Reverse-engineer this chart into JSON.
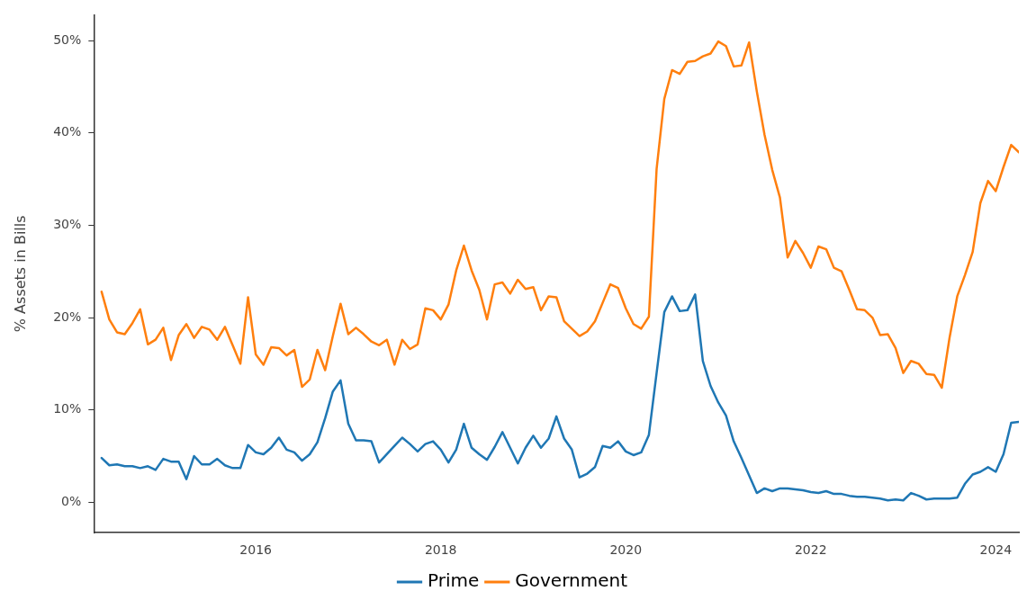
{
  "chart_data": {
    "type": "line",
    "ylabel": "% Assets in Bills",
    "x": [
      "2014-05",
      "2014-06",
      "2014-07",
      "2014-08",
      "2014-09",
      "2014-10",
      "2014-11",
      "2014-12",
      "2015-01",
      "2015-02",
      "2015-03",
      "2015-04",
      "2015-05",
      "2015-06",
      "2015-07",
      "2015-08",
      "2015-09",
      "2015-10",
      "2015-11",
      "2015-12",
      "2016-01",
      "2016-02",
      "2016-03",
      "2016-04",
      "2016-05",
      "2016-06",
      "2016-07",
      "2016-08",
      "2016-09",
      "2016-10",
      "2016-11",
      "2016-12",
      "2017-01",
      "2017-02",
      "2017-03",
      "2017-04",
      "2017-05",
      "2017-06",
      "2017-07",
      "2017-08",
      "2017-09",
      "2017-10",
      "2017-11",
      "2017-12",
      "2018-01",
      "2018-02",
      "2018-03",
      "2018-04",
      "2018-05",
      "2018-06",
      "2018-07",
      "2018-08",
      "2018-09",
      "2018-10",
      "2018-11",
      "2018-12",
      "2019-01",
      "2019-02",
      "2019-03",
      "2019-04",
      "2019-05",
      "2019-06",
      "2019-07",
      "2019-08",
      "2019-09",
      "2019-10",
      "2019-11",
      "2019-12",
      "2020-01",
      "2020-02",
      "2020-03",
      "2020-04",
      "2020-05",
      "2020-06",
      "2020-07",
      "2020-08",
      "2020-09",
      "2020-10",
      "2020-11",
      "2020-12",
      "2021-01",
      "2021-02",
      "2021-03",
      "2021-04",
      "2021-05",
      "2021-06",
      "2021-07",
      "2021-08",
      "2021-09",
      "2021-10",
      "2021-11",
      "2021-12",
      "2022-01",
      "2022-02",
      "2022-03",
      "2022-04",
      "2022-05",
      "2022-06",
      "2022-07",
      "2022-08",
      "2022-09",
      "2022-10",
      "2022-11",
      "2022-12",
      "2023-01",
      "2023-02",
      "2023-03",
      "2023-04",
      "2023-05",
      "2023-06",
      "2023-07",
      "2023-08",
      "2023-09",
      "2023-10",
      "2023-11",
      "2023-12",
      "2024-01",
      "2024-02",
      "2024-03",
      "2024-04"
    ],
    "series": [
      {
        "name": "Prime",
        "color": "#1f77b4",
        "values": [
          4.8,
          4.0,
          4.1,
          3.9,
          3.9,
          3.7,
          3.9,
          3.5,
          4.7,
          4.4,
          4.4,
          2.5,
          5.0,
          4.1,
          4.1,
          4.7,
          4.0,
          3.7,
          3.7,
          6.2,
          5.4,
          5.2,
          5.9,
          7.0,
          5.7,
          5.4,
          4.5,
          5.2,
          6.5,
          9.1,
          12.0,
          13.2,
          8.5,
          6.7,
          6.7,
          6.6,
          4.3,
          5.2,
          6.1,
          7.0,
          6.3,
          5.5,
          6.3,
          6.6,
          5.7,
          4.3,
          5.7,
          8.5,
          5.9,
          5.2,
          4.6,
          6.0,
          7.6,
          5.9,
          4.2,
          5.9,
          7.2,
          5.9,
          6.9,
          9.3,
          6.9,
          5.7,
          2.7,
          3.1,
          3.8,
          6.1,
          5.9,
          6.6,
          5.5,
          5.1,
          5.4,
          7.3,
          14.0,
          20.6,
          22.3,
          20.7,
          20.8,
          22.5,
          15.3,
          12.6,
          10.8,
          9.4,
          6.6,
          4.8,
          2.9,
          1.0,
          1.5,
          1.2,
          1.5,
          1.5,
          1.4,
          1.3,
          1.1,
          1.0,
          1.2,
          0.9,
          0.9,
          0.7,
          0.6,
          0.6,
          0.5,
          0.4,
          0.2,
          0.3,
          0.2,
          1.0,
          0.7,
          0.3,
          0.4,
          0.4,
          0.4,
          0.5,
          2.0,
          3.0,
          3.3,
          3.8,
          3.3,
          5.2,
          8.6,
          8.7
        ]
      },
      {
        "name": "Government",
        "color": "#ff7f0e",
        "values": [
          22.8,
          19.8,
          18.4,
          18.2,
          19.4,
          20.9,
          17.1,
          17.6,
          18.9,
          15.4,
          18.1,
          19.3,
          17.8,
          19.0,
          18.7,
          17.6,
          19.0,
          17.0,
          15.0,
          22.2,
          16.0,
          14.9,
          16.8,
          16.7,
          15.9,
          16.5,
          12.5,
          13.3,
          16.5,
          14.3,
          18.0,
          21.5,
          18.2,
          18.9,
          18.2,
          17.4,
          17.0,
          17.6,
          14.9,
          17.6,
          16.6,
          17.1,
          21.0,
          20.8,
          19.8,
          21.4,
          25.1,
          27.8,
          25.1,
          23.0,
          19.8,
          23.6,
          23.8,
          22.6,
          24.1,
          23.1,
          23.3,
          20.8,
          22.3,
          22.2,
          19.6,
          18.8,
          18.0,
          18.5,
          19.6,
          21.6,
          23.6,
          23.2,
          21.0,
          19.3,
          18.8,
          20.1,
          36.1,
          43.7,
          46.8,
          46.4,
          47.7,
          47.8,
          48.3,
          48.6,
          49.9,
          49.4,
          47.2,
          47.3,
          49.8,
          44.5,
          39.8,
          36.0,
          33.0,
          26.5,
          28.3,
          27.0,
          25.4,
          27.7,
          27.4,
          25.4,
          25.0,
          23.0,
          20.9,
          20.8,
          20.0,
          18.1,
          18.2,
          16.7,
          14.0,
          15.3,
          15.0,
          13.9,
          13.8,
          12.4,
          17.8,
          22.3,
          24.6,
          27.1,
          32.4,
          34.8,
          33.7,
          36.3,
          38.7,
          37.9
        ]
      }
    ],
    "xlim": [
      "2014-04",
      "2024-04"
    ],
    "xticks": [
      "2016",
      "2018",
      "2020",
      "2022",
      "2024"
    ],
    "ylim": [
      -3.3,
      52.8
    ],
    "yticks": [
      {
        "value": 0,
        "label": "0%"
      },
      {
        "value": 10,
        "label": "10%"
      },
      {
        "value": 20,
        "label": "20%"
      },
      {
        "value": 30,
        "label": "30%"
      },
      {
        "value": 40,
        "label": "40%"
      },
      {
        "value": 50,
        "label": "50%"
      }
    ],
    "grid": false,
    "legend": "bottom",
    "marker": "none",
    "line_style": "solid"
  }
}
